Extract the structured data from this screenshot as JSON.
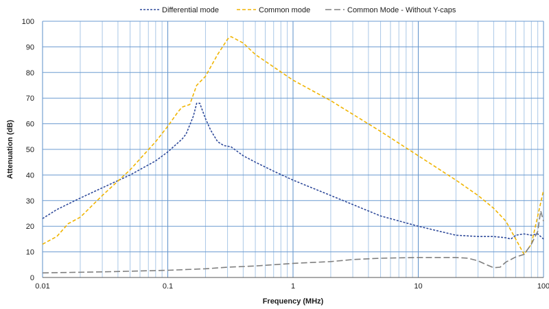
{
  "chart_data": {
    "type": "line",
    "xlabel": "Frequency (MHz)",
    "ylabel": "Attenuation (dB)",
    "xscale": "log",
    "xlim": [
      0.01,
      100
    ],
    "ylim": [
      0,
      100
    ],
    "xticks": [
      0.01,
      0.1,
      1,
      10,
      100
    ],
    "xtick_labels": [
      "0.01",
      "0.1",
      "1",
      "10",
      "100"
    ],
    "yticks": [
      0,
      10,
      20,
      30,
      40,
      50,
      60,
      70,
      80,
      90,
      100
    ],
    "ytick_labels": [
      "0",
      "10",
      "20",
      "30",
      "40",
      "50",
      "60",
      "70",
      "80",
      "90",
      "100"
    ],
    "grid": true,
    "legend_position": "top",
    "series": [
      {
        "name": "Differential mode",
        "color": "#2f4a9a",
        "dash": "dotted",
        "points": [
          [
            0.01,
            23
          ],
          [
            0.013,
            26.5
          ],
          [
            0.02,
            31
          ],
          [
            0.03,
            35
          ],
          [
            0.05,
            40
          ],
          [
            0.08,
            45.5
          ],
          [
            0.1,
            49
          ],
          [
            0.13,
            54
          ],
          [
            0.14,
            56
          ],
          [
            0.16,
            63
          ],
          [
            0.17,
            68
          ],
          [
            0.18,
            68
          ],
          [
            0.2,
            62
          ],
          [
            0.22,
            57.5
          ],
          [
            0.25,
            53
          ],
          [
            0.28,
            51.5
          ],
          [
            0.32,
            51
          ],
          [
            0.4,
            47.5
          ],
          [
            0.5,
            45
          ],
          [
            0.7,
            41.5
          ],
          [
            1,
            38
          ],
          [
            2,
            32
          ],
          [
            5,
            24
          ],
          [
            10,
            20
          ],
          [
            20,
            16.5
          ],
          [
            30,
            16
          ],
          [
            40,
            16
          ],
          [
            50,
            15.5
          ],
          [
            55,
            15
          ],
          [
            60,
            16.5
          ],
          [
            70,
            17
          ],
          [
            80,
            16.5
          ],
          [
            90,
            17
          ],
          [
            100,
            15
          ]
        ]
      },
      {
        "name": "Common mode",
        "color": "#f0b400",
        "dash": "dashed",
        "points": [
          [
            0.01,
            13
          ],
          [
            0.013,
            16
          ],
          [
            0.016,
            21
          ],
          [
            0.02,
            23.5
          ],
          [
            0.03,
            32
          ],
          [
            0.05,
            42
          ],
          [
            0.08,
            53
          ],
          [
            0.1,
            59
          ],
          [
            0.12,
            64.5
          ],
          [
            0.13,
            66.5
          ],
          [
            0.15,
            67.5
          ],
          [
            0.17,
            75
          ],
          [
            0.2,
            78.5
          ],
          [
            0.25,
            87
          ],
          [
            0.3,
            93
          ],
          [
            0.32,
            94
          ],
          [
            0.4,
            91.5
          ],
          [
            0.5,
            87
          ],
          [
            1,
            77
          ],
          [
            2,
            69
          ],
          [
            5,
            57
          ],
          [
            10,
            47.5
          ],
          [
            20,
            38
          ],
          [
            30,
            32
          ],
          [
            40,
            27
          ],
          [
            50,
            22
          ],
          [
            60,
            15
          ],
          [
            70,
            9
          ],
          [
            80,
            13
          ],
          [
            90,
            24
          ],
          [
            100,
            34
          ]
        ]
      },
      {
        "name": "Common Mode - Without Y-caps",
        "color": "#7f7f7f",
        "dash": "longdash",
        "points": [
          [
            0.01,
            1.8
          ],
          [
            0.03,
            2.2
          ],
          [
            0.1,
            2.8
          ],
          [
            0.2,
            3.4
          ],
          [
            0.3,
            4
          ],
          [
            0.5,
            4.5
          ],
          [
            1,
            5.5
          ],
          [
            2,
            6.2
          ],
          [
            3,
            7
          ],
          [
            5,
            7.5
          ],
          [
            10,
            7.8
          ],
          [
            20,
            7.8
          ],
          [
            25,
            7.5
          ],
          [
            30,
            6.5
          ],
          [
            35,
            5
          ],
          [
            40,
            3.8
          ],
          [
            45,
            4
          ],
          [
            50,
            6
          ],
          [
            60,
            8
          ],
          [
            70,
            9
          ],
          [
            80,
            13
          ],
          [
            90,
            18
          ],
          [
            95,
            26
          ],
          [
            100,
            22
          ]
        ]
      }
    ]
  }
}
